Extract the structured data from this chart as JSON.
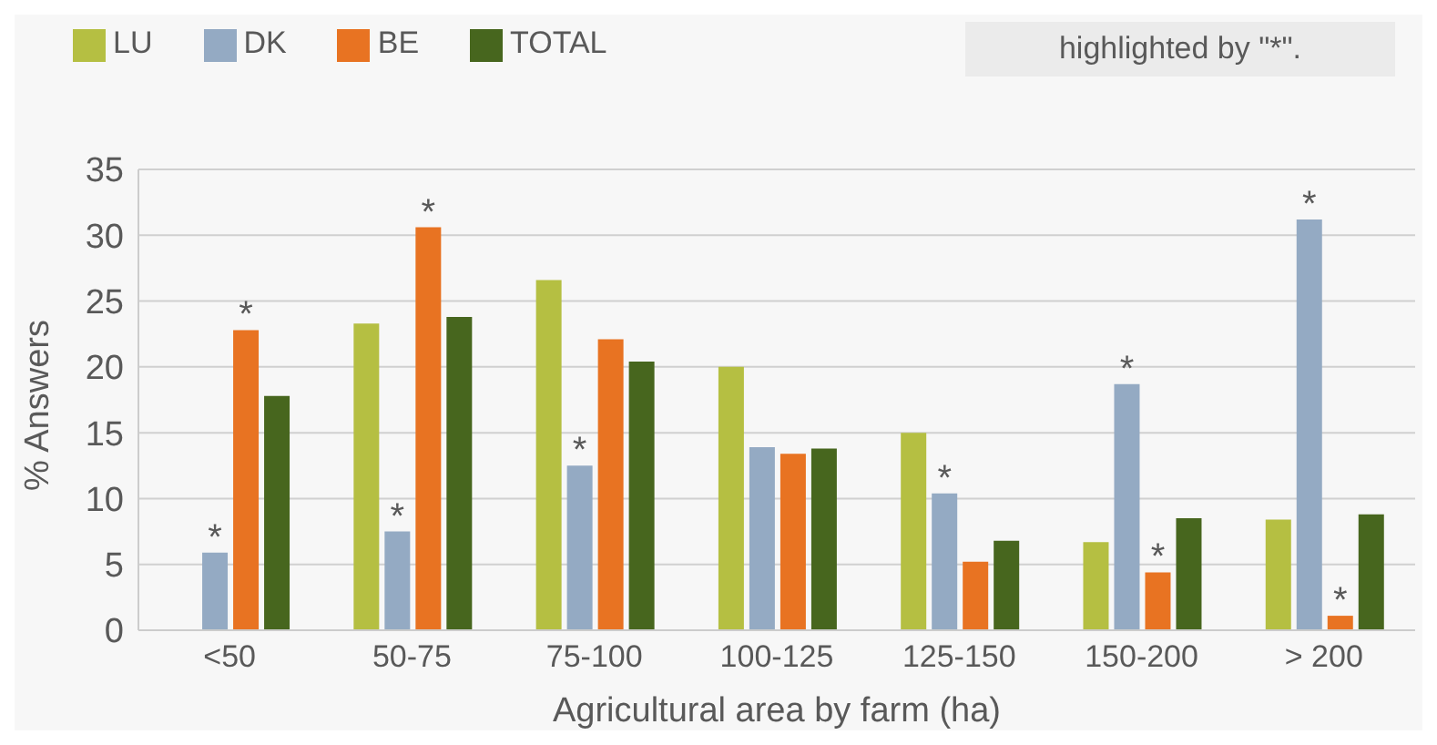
{
  "chart_data": {
    "type": "bar",
    "xlabel": "Agricultural area by farm (ha)",
    "ylabel": "% Answers",
    "categories": [
      "<50",
      "50-75",
      "75-100",
      "100-125",
      "125-150",
      "150-200",
      "> 200"
    ],
    "series": [
      {
        "name": "LU",
        "color": "#b5bf42",
        "values": [
          0,
          23.3,
          26.6,
          20.0,
          15.0,
          6.7,
          8.4
        ]
      },
      {
        "name": "DK",
        "color": "#94aac3",
        "values": [
          5.9,
          7.5,
          12.5,
          13.9,
          10.4,
          18.7,
          31.2
        ],
        "value_labels": [
          "*",
          "*",
          "*",
          null,
          "*",
          "*",
          "*"
        ]
      },
      {
        "name": "BE",
        "color": "#e87322",
        "values": [
          22.8,
          30.6,
          22.1,
          13.4,
          5.2,
          4.4,
          1.1
        ],
        "value_labels": [
          "*",
          "*",
          null,
          null,
          null,
          "*",
          "*"
        ]
      },
      {
        "name": "TOTAL",
        "color": "#47661e",
        "values": [
          17.8,
          23.8,
          20.4,
          13.8,
          6.8,
          8.5,
          8.8
        ]
      }
    ],
    "ylim": [
      0,
      35
    ],
    "yticks": [
      0,
      5,
      10,
      15,
      20,
      25,
      30,
      35
    ],
    "grid": "y",
    "legend": "top left",
    "annotations": [
      "highlighted by \"*\"."
    ]
  }
}
